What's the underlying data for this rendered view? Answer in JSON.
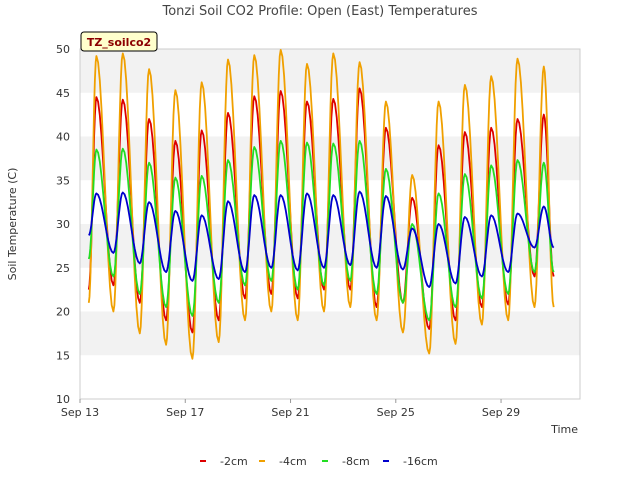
{
  "chart_data": {
    "type": "line",
    "title": "Tonzi Soil CO2 Profile: Open (East) Temperatures",
    "xlabel": "Time",
    "ylabel": "Soil Temperature (C)",
    "badge": "TZ_soilco2",
    "ylim": [
      10,
      50
    ],
    "yticks": [
      10,
      15,
      20,
      25,
      30,
      35,
      40,
      45,
      50
    ],
    "xlim": [
      "2024-09-13",
      "2024-10-02"
    ],
    "xticks": [
      {
        "date": "2024-09-13",
        "label": "Sep 13"
      },
      {
        "date": "2024-09-17",
        "label": "Sep 17"
      },
      {
        "date": "2024-09-21",
        "label": "Sep 21"
      },
      {
        "date": "2024-09-25",
        "label": "Sep 25"
      },
      {
        "date": "2024-09-29",
        "label": "Sep 29"
      }
    ],
    "grid": "horizontal bands",
    "legend_position": "bottom",
    "days": [
      "2024-09-13",
      "2024-09-14",
      "2024-09-15",
      "2024-09-16",
      "2024-09-17",
      "2024-09-18",
      "2024-09-19",
      "2024-09-20",
      "2024-09-21",
      "2024-09-22",
      "2024-09-23",
      "2024-09-24",
      "2024-09-25",
      "2024-09-26",
      "2024-09-27",
      "2024-09-28",
      "2024-09-29",
      "2024-09-30"
    ],
    "series": [
      {
        "name": "-2cm",
        "color": "#dd0000",
        "start": 22.5,
        "end": 24.0,
        "min": [
          22.0,
          23.0,
          21.0,
          19.0,
          17.6,
          19.0,
          21.5,
          22.0,
          21.5,
          22.5,
          22.5,
          20.5,
          21.0,
          18.0,
          19.0,
          20.5,
          20.8,
          24.0
        ],
        "max": [
          44.5,
          44.2,
          42.0,
          39.5,
          40.7,
          42.7,
          44.6,
          45.2,
          44.0,
          44.3,
          45.5,
          41.0,
          33.0,
          39.0,
          40.5,
          41.0,
          42.0,
          42.5
        ]
      },
      {
        "name": "-4cm",
        "color": "#f0a000",
        "start": 21.0,
        "end": 20.5,
        "min": [
          19.2,
          20.0,
          17.5,
          16.2,
          14.6,
          16.5,
          19.0,
          20.0,
          19.0,
          20.0,
          20.5,
          19.0,
          17.6,
          15.2,
          16.3,
          18.5,
          19.0,
          20.5
        ],
        "max": [
          49.2,
          49.5,
          47.7,
          45.3,
          46.2,
          48.8,
          49.3,
          49.9,
          48.3,
          49.5,
          48.5,
          44.0,
          35.6,
          44.0,
          45.9,
          46.9,
          48.9,
          48.0
        ]
      },
      {
        "name": "-8cm",
        "color": "#22dd22",
        "start": 26.0,
        "end": 24.5,
        "min": [
          23.5,
          24.0,
          22.0,
          20.5,
          19.5,
          21.0,
          23.0,
          23.5,
          22.5,
          23.0,
          23.5,
          22.0,
          21.0,
          19.0,
          20.5,
          21.5,
          22.0,
          24.5
        ],
        "max": [
          38.5,
          38.6,
          37.0,
          35.3,
          35.5,
          37.3,
          38.8,
          39.5,
          39.3,
          39.2,
          39.5,
          36.3,
          30.0,
          33.5,
          35.7,
          36.7,
          37.3,
          37.0
        ]
      },
      {
        "name": "-16cm",
        "color": "#0000cc",
        "start": 28.7,
        "end": 27.3,
        "min": [
          26.0,
          26.7,
          25.5,
          24.5,
          23.5,
          23.7,
          24.5,
          25.0,
          24.7,
          25.0,
          25.3,
          25.0,
          24.8,
          22.8,
          23.2,
          24.0,
          24.5,
          27.3
        ],
        "max": [
          33.5,
          33.6,
          32.5,
          31.5,
          31.0,
          32.6,
          33.3,
          33.3,
          33.5,
          33.3,
          33.7,
          33.2,
          29.5,
          30.0,
          30.8,
          31.0,
          31.2,
          32.0
        ]
      }
    ]
  }
}
